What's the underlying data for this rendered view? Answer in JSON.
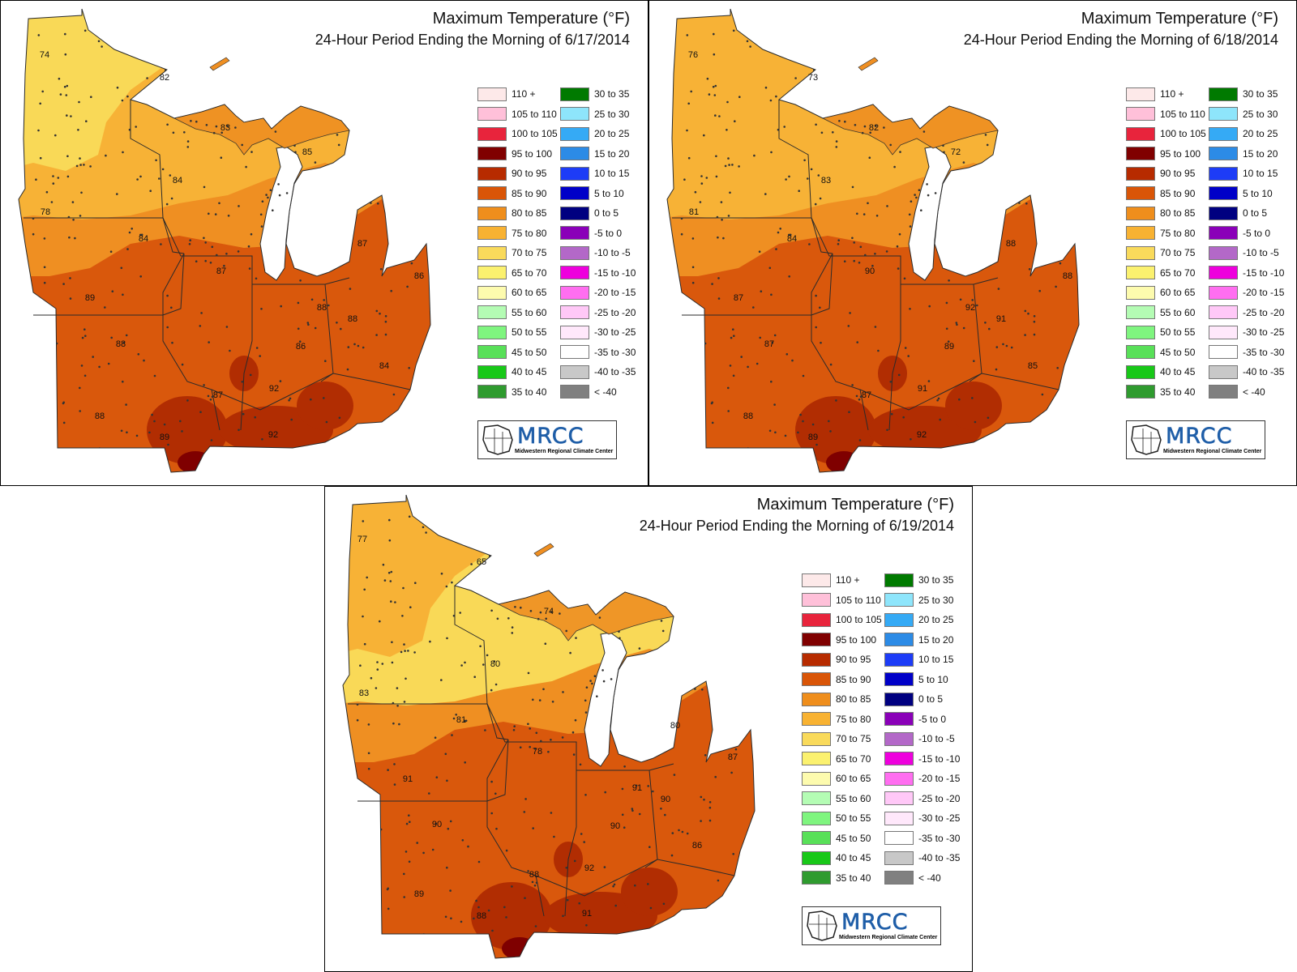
{
  "colors": {
    "c60_65": "#fff7a6",
    "c70_75": "#f9d957",
    "c75_80": "#f7b236",
    "c80_85": "#ef8f22",
    "c85_90": "#d9580c",
    "c90_95": "#b12d02",
    "c95_100": "#7f0000",
    "border": "#2a2a2a",
    "lake": "#ffffff"
  },
  "legend": {
    "left": [
      {
        "label": "110 +",
        "color": "#fde9e9"
      },
      {
        "label": "105 to 110",
        "color": "#ffc0d9"
      },
      {
        "label": "100 to 105",
        "color": "#e8243c"
      },
      {
        "label": "95 to 100",
        "color": "#800000"
      },
      {
        "label": "90 to 95",
        "color": "#b72b00"
      },
      {
        "label": "85 to 90",
        "color": "#d95507"
      },
      {
        "label": "80 to 85",
        "color": "#ef8e1c"
      },
      {
        "label": "75 to 80",
        "color": "#f8b232"
      },
      {
        "label": "70 to 75",
        "color": "#f9da5b"
      },
      {
        "label": "65 to 70",
        "color": "#fbf16f"
      },
      {
        "label": "60 to 65",
        "color": "#fdfbae"
      },
      {
        "label": "55 to 60",
        "color": "#b4fcb4"
      },
      {
        "label": "50 to 55",
        "color": "#7ff57f"
      },
      {
        "label": "45 to 50",
        "color": "#58e058"
      },
      {
        "label": "40 to 45",
        "color": "#18c818"
      },
      {
        "label": "35 to 40",
        "color": "#2f9b2f"
      }
    ],
    "right": [
      {
        "label": "30 to 35",
        "color": "#007a00"
      },
      {
        "label": "25 to 30",
        "color": "#8ee5fb"
      },
      {
        "label": "20 to 25",
        "color": "#35aaf5"
      },
      {
        "label": "15 to 20",
        "color": "#2c8be6"
      },
      {
        "label": "10 to 15",
        "color": "#1d3cf7"
      },
      {
        "label": "5 to 10",
        "color": "#0000c8"
      },
      {
        "label": "0 to 5",
        "color": "#000080"
      },
      {
        "label": "-5 to 0",
        "color": "#8a00b8"
      },
      {
        "label": "-10 to -5",
        "color": "#b368c8"
      },
      {
        "label": "-15 to -10",
        "color": "#ee00dd"
      },
      {
        "label": "-20 to -15",
        "color": "#ff6ef0"
      },
      {
        "label": "-25 to -20",
        "color": "#ffc8f7"
      },
      {
        "label": "-30 to -25",
        "color": "#ffe8fb"
      },
      {
        "label": "-35 to -30",
        "color": "#ffffff"
      },
      {
        "label": "-40 to -35",
        "color": "#c8c8c8"
      },
      {
        "label": "< -40",
        "color": "#808080"
      }
    ]
  },
  "logo": {
    "name": "MRCC",
    "subtitle": "Midwestern Regional Climate Center"
  },
  "panels": [
    {
      "title": "Maximum Temperature (°F)",
      "subtitle": "24-Hour Period Ending the Morning of 6/17/2014",
      "north_bins": [
        "c70_75",
        "c75_80",
        "c80_85"
      ],
      "labels": [
        {
          "text": "74",
          "x": 54,
          "y": 70
        },
        {
          "text": "82",
          "x": 202,
          "y": 98
        },
        {
          "text": "83",
          "x": 277,
          "y": 160
        },
        {
          "text": "85",
          "x": 378,
          "y": 190
        },
        {
          "text": "84",
          "x": 218,
          "y": 225
        },
        {
          "text": "78",
          "x": 55,
          "y": 264
        },
        {
          "text": "84",
          "x": 176,
          "y": 297
        },
        {
          "text": "87",
          "x": 446,
          "y": 303
        },
        {
          "text": "87",
          "x": 272,
          "y": 337
        },
        {
          "text": "86",
          "x": 516,
          "y": 343
        },
        {
          "text": "89",
          "x": 110,
          "y": 370
        },
        {
          "text": "88",
          "x": 396,
          "y": 382
        },
        {
          "text": "88",
          "x": 434,
          "y": 396
        },
        {
          "text": "88",
          "x": 148,
          "y": 427
        },
        {
          "text": "86",
          "x": 370,
          "y": 430
        },
        {
          "text": "84",
          "x": 473,
          "y": 454
        },
        {
          "text": "92",
          "x": 337,
          "y": 482
        },
        {
          "text": "87",
          "x": 268,
          "y": 490
        },
        {
          "text": "88",
          "x": 122,
          "y": 516
        },
        {
          "text": "89",
          "x": 202,
          "y": 542
        },
        {
          "text": "92",
          "x": 336,
          "y": 539
        }
      ]
    },
    {
      "title": "Maximum Temperature (°F)",
      "subtitle": "24-Hour Period Ending the Morning of 6/18/2014",
      "north_bins": [
        "c75_80",
        "c75_80",
        "c80_85"
      ],
      "labels": [
        {
          "text": "76",
          "x": 54,
          "y": 70
        },
        {
          "text": "73",
          "x": 202,
          "y": 98
        },
        {
          "text": "82",
          "x": 277,
          "y": 160
        },
        {
          "text": "72",
          "x": 378,
          "y": 190
        },
        {
          "text": "83",
          "x": 218,
          "y": 225
        },
        {
          "text": "81",
          "x": 55,
          "y": 264
        },
        {
          "text": "84",
          "x": 176,
          "y": 297
        },
        {
          "text": "88",
          "x": 446,
          "y": 303
        },
        {
          "text": "90",
          "x": 272,
          "y": 337
        },
        {
          "text": "88",
          "x": 516,
          "y": 343
        },
        {
          "text": "87",
          "x": 110,
          "y": 370
        },
        {
          "text": "92",
          "x": 396,
          "y": 382
        },
        {
          "text": "91",
          "x": 434,
          "y": 396
        },
        {
          "text": "87",
          "x": 148,
          "y": 427
        },
        {
          "text": "89",
          "x": 370,
          "y": 430
        },
        {
          "text": "85",
          "x": 473,
          "y": 454
        },
        {
          "text": "91",
          "x": 337,
          "y": 482
        },
        {
          "text": "87",
          "x": 268,
          "y": 490
        },
        {
          "text": "88",
          "x": 122,
          "y": 516
        },
        {
          "text": "89",
          "x": 202,
          "y": 542
        },
        {
          "text": "92",
          "x": 336,
          "y": 539
        }
      ]
    },
    {
      "title": "Maximum Temperature (°F)",
      "subtitle": "24-Hour Period Ending the Morning of 6/19/2014",
      "north_bins": [
        "c75_80",
        "c70_75",
        "c80_85"
      ],
      "labels": [
        {
          "text": "77",
          "x": 46,
          "y": 68
        },
        {
          "text": "65",
          "x": 193,
          "y": 96
        },
        {
          "text": "74",
          "x": 276,
          "y": 157
        },
        {
          "text": "80",
          "x": 210,
          "y": 222
        },
        {
          "text": "83",
          "x": 48,
          "y": 258
        },
        {
          "text": "81",
          "x": 168,
          "y": 291
        },
        {
          "text": "80",
          "x": 432,
          "y": 298
        },
        {
          "text": "78",
          "x": 262,
          "y": 330
        },
        {
          "text": "87",
          "x": 503,
          "y": 337
        },
        {
          "text": "91",
          "x": 102,
          "y": 364
        },
        {
          "text": "91",
          "x": 385,
          "y": 375
        },
        {
          "text": "90",
          "x": 420,
          "y": 389
        },
        {
          "text": "90",
          "x": 138,
          "y": 420
        },
        {
          "text": "90",
          "x": 358,
          "y": 422
        },
        {
          "text": "86",
          "x": 459,
          "y": 446
        },
        {
          "text": "92",
          "x": 326,
          "y": 474
        },
        {
          "text": "88",
          "x": 258,
          "y": 482
        },
        {
          "text": "89",
          "x": 116,
          "y": 506
        },
        {
          "text": "88",
          "x": 193,
          "y": 533
        },
        {
          "text": "91",
          "x": 323,
          "y": 530
        }
      ]
    }
  ]
}
